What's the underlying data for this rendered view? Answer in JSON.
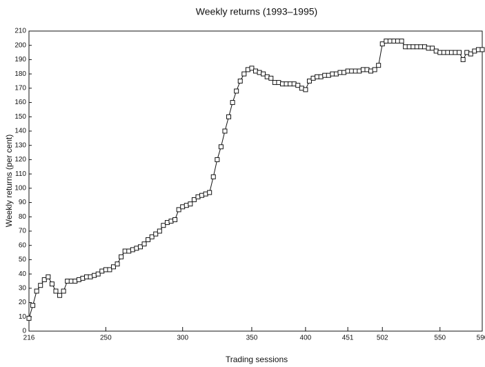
{
  "chart_data": {
    "type": "line",
    "title": "Weekly returns (1993–1995)",
    "x_label": "Trading sessions",
    "y_label": "Weekly returns (per cent)",
    "x": [
      0,
      1,
      2,
      3,
      4,
      5,
      6,
      7,
      8,
      9,
      10,
      11,
      12,
      13,
      14,
      15,
      16,
      17,
      18,
      19,
      20,
      21,
      22,
      23,
      24,
      25,
      26,
      27,
      28,
      29,
      30,
      31,
      32,
      33,
      34,
      35,
      36,
      37,
      38,
      39,
      40,
      41,
      42,
      43,
      44,
      45,
      46,
      47,
      48,
      49,
      50,
      51,
      52,
      53,
      54,
      55,
      56,
      57,
      58,
      59,
      60,
      61,
      62,
      63,
      64,
      65,
      66,
      67,
      68,
      69,
      70,
      71,
      72,
      73,
      74,
      75,
      76,
      77,
      78,
      79,
      80,
      81,
      82,
      83,
      84,
      85,
      86,
      87,
      88,
      89,
      90,
      91,
      92,
      93,
      94,
      95,
      96,
      97,
      98,
      99,
      100,
      101,
      102,
      103,
      104,
      105,
      106,
      107,
      108,
      109,
      110,
      111,
      112,
      113,
      114,
      115,
      116,
      117,
      118
    ],
    "values": [
      9,
      18,
      28,
      32,
      36,
      38,
      33,
      28,
      25,
      28,
      35,
      35,
      35,
      36,
      37,
      38,
      38,
      39,
      40,
      42,
      43,
      43,
      45,
      47,
      52,
      56,
      56,
      57,
      58,
      59,
      61,
      64,
      66,
      68,
      70,
      74,
      76,
      77,
      78,
      85,
      87,
      88,
      89,
      92,
      94,
      95,
      96,
      97,
      108,
      120,
      129,
      140,
      150,
      160,
      168,
      175,
      180,
      183,
      184,
      182,
      181,
      180,
      178,
      177,
      174,
      174,
      173,
      173,
      173,
      173,
      172,
      170,
      169,
      175,
      177,
      178,
      178,
      179,
      179,
      180,
      180,
      181,
      181,
      182,
      182,
      182,
      182,
      183,
      183,
      182,
      183,
      186,
      201,
      203,
      203,
      203,
      203,
      203,
      199,
      199,
      199,
      199,
      199,
      199,
      198,
      198,
      196,
      195,
      195,
      195,
      195,
      195,
      195,
      190,
      195,
      194,
      196,
      197,
      197
    ],
    "color": "#111111",
    "xlim": [
      0,
      118
    ],
    "xticks": [
      {
        "value": 0,
        "label": "216"
      },
      {
        "value": 20,
        "label": "250"
      },
      {
        "value": 40,
        "label": "300"
      },
      {
        "value": 58,
        "label": "350"
      },
      {
        "value": 72,
        "label": "400"
      },
      {
        "value": 83,
        "label": "451"
      },
      {
        "value": 92,
        "label": "502"
      },
      {
        "value": 107,
        "label": "550"
      },
      {
        "value": 118,
        "label": "590"
      }
    ],
    "ylim": [
      0,
      210
    ],
    "yticks": [
      0,
      10,
      20,
      30,
      40,
      50,
      60,
      70,
      80,
      90,
      100,
      110,
      120,
      130,
      140,
      150,
      160,
      170,
      180,
      190,
      200,
      210
    ]
  }
}
